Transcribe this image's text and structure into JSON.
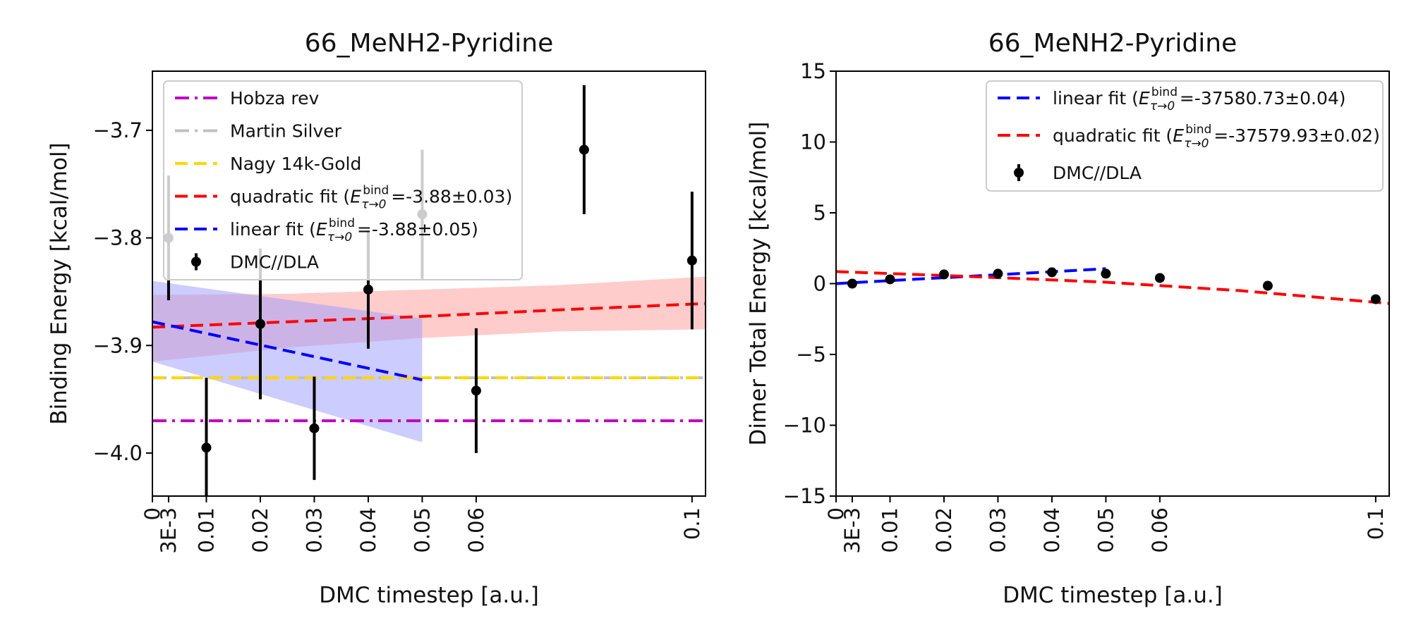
{
  "chart_data": [
    {
      "type": "line",
      "title": "66_MeNH2-Pyridine",
      "xlabel": "DMC timestep [a.u.]",
      "ylabel": "Binding Energy [kcal/mol]",
      "xlim": [
        0,
        0.1025
      ],
      "ylim": [
        -4.04,
        -3.645
      ],
      "x_ticks": [
        {
          "value": 0,
          "label": "0"
        },
        {
          "value": 0.003,
          "label": "3E-3"
        },
        {
          "value": 0.01,
          "label": "0.01"
        },
        {
          "value": 0.02,
          "label": "0.02"
        },
        {
          "value": 0.03,
          "label": "0.03"
        },
        {
          "value": 0.04,
          "label": "0.04"
        },
        {
          "value": 0.05,
          "label": "0.05"
        },
        {
          "value": 0.06,
          "label": "0.06"
        },
        {
          "value": 0.1,
          "label": "0.1"
        }
      ],
      "y_ticks": [
        {
          "value": -3.7,
          "label": "−3.7"
        },
        {
          "value": -3.8,
          "label": "−3.8"
        },
        {
          "value": -3.9,
          "label": "−3.9"
        },
        {
          "value": -4.0,
          "label": "−4.0"
        }
      ],
      "reference_lines": [
        {
          "name": "Hobza rev",
          "value": -3.97,
          "color": "#c000c0",
          "style": "dashdot"
        },
        {
          "name": "Martin Silver",
          "value": -3.93,
          "color": "#c0c0c0",
          "style": "dashdot"
        },
        {
          "name": "Nagy 14k-Gold",
          "value": -3.93,
          "color": "#ffd700",
          "style": "dashed"
        }
      ],
      "fits": [
        {
          "name": "quadratic fit",
          "legend_prefix": "quadratic fit (",
          "legend_value": " =-3.88±0.03)",
          "color": "#ff0000",
          "band_color": "#ff9999",
          "x": [
            0,
            0.025,
            0.05,
            0.075,
            0.1025
          ],
          "y": [
            -3.883,
            -3.878,
            -3.873,
            -3.867,
            -3.861
          ],
          "band_low": [
            -3.915,
            -3.902,
            -3.893,
            -3.887,
            -3.885
          ],
          "band_high": [
            -3.853,
            -3.852,
            -3.848,
            -3.844,
            -3.836
          ]
        },
        {
          "name": "linear fit",
          "legend_prefix": "linear fit (",
          "legend_value": " =-3.88±0.05)",
          "color": "#0000ff",
          "band_color": "#9999ff",
          "x": [
            0,
            0.05
          ],
          "y": [
            -3.878,
            -3.932
          ],
          "band_low": [
            -3.915,
            -3.99
          ],
          "band_high": [
            -3.84,
            -3.875
          ]
        }
      ],
      "legend_symbol": {
        "base": "E",
        "sup": "bind",
        "sub": "τ→0"
      },
      "series": [
        {
          "name": "DMC//DLA",
          "color": "#000000",
          "points": [
            {
              "x": 0.003,
              "y": -3.8,
              "err": 0.058
            },
            {
              "x": 0.01,
              "y": -3.995,
              "err": 0.065
            },
            {
              "x": 0.02,
              "y": -3.88,
              "err": 0.07
            },
            {
              "x": 0.03,
              "y": -3.977,
              "err": 0.048
            },
            {
              "x": 0.04,
              "y": -3.848,
              "err": 0.055
            },
            {
              "x": 0.05,
              "y": -3.778,
              "err": 0.06
            },
            {
              "x": 0.06,
              "y": -3.942,
              "err": 0.058
            },
            {
              "x": 0.08,
              "y": -3.718,
              "err": 0.06
            },
            {
              "x": 0.1,
              "y": -3.821,
              "err": 0.064
            }
          ]
        }
      ],
      "legend_position": "upper left",
      "grid": false
    },
    {
      "type": "line",
      "title": "66_MeNH2-Pyridine",
      "xlabel": "DMC timestep [a.u.]",
      "ylabel": "Dimer Total Energy [kcal/mol]",
      "xlim": [
        0,
        0.1025
      ],
      "ylim": [
        -15,
        15
      ],
      "x_ticks": [
        {
          "value": 0,
          "label": "0"
        },
        {
          "value": 0.003,
          "label": "3E-3"
        },
        {
          "value": 0.01,
          "label": "0.01"
        },
        {
          "value": 0.02,
          "label": "0.02"
        },
        {
          "value": 0.03,
          "label": "0.03"
        },
        {
          "value": 0.04,
          "label": "0.04"
        },
        {
          "value": 0.05,
          "label": "0.05"
        },
        {
          "value": 0.06,
          "label": "0.06"
        },
        {
          "value": 0.1,
          "label": "0.1"
        }
      ],
      "y_ticks": [
        {
          "value": 15,
          "label": "15"
        },
        {
          "value": 10,
          "label": "10"
        },
        {
          "value": 5,
          "label": "5"
        },
        {
          "value": 0,
          "label": "0"
        },
        {
          "value": -5,
          "label": "−5"
        },
        {
          "value": -10,
          "label": "−10"
        },
        {
          "value": -15,
          "label": "−15"
        }
      ],
      "fits": [
        {
          "name": "linear fit",
          "legend_prefix": "linear fit (",
          "legend_value": " =-37580.73±0.04)",
          "color": "#0000ff",
          "x": [
            0,
            0.05
          ],
          "y": [
            0.0,
            1.05
          ]
        },
        {
          "name": "quadratic fit",
          "legend_prefix": "quadratic fit (",
          "legend_value": " =-37579.93±0.02)",
          "color": "#ff0000",
          "x": [
            0,
            0.025,
            0.05,
            0.075,
            0.1025
          ],
          "y": [
            0.85,
            0.5,
            0.1,
            -0.5,
            -1.4
          ]
        }
      ],
      "legend_symbol": {
        "base": "E",
        "sup": "bind",
        "sub": "τ→0"
      },
      "series": [
        {
          "name": "DMC//DLA",
          "color": "#000000",
          "points": [
            {
              "x": 0.003,
              "y": 0.0,
              "err": 0.05
            },
            {
              "x": 0.01,
              "y": 0.3,
              "err": 0.05
            },
            {
              "x": 0.02,
              "y": 0.65,
              "err": 0.05
            },
            {
              "x": 0.03,
              "y": 0.7,
              "err": 0.05
            },
            {
              "x": 0.04,
              "y": 0.8,
              "err": 0.05
            },
            {
              "x": 0.05,
              "y": 0.7,
              "err": 0.05
            },
            {
              "x": 0.06,
              "y": 0.4,
              "err": 0.05
            },
            {
              "x": 0.08,
              "y": -0.15,
              "err": 0.05
            },
            {
              "x": 0.1,
              "y": -1.1,
              "err": 0.05
            }
          ]
        }
      ],
      "legend_position": "upper right",
      "grid": false
    }
  ]
}
